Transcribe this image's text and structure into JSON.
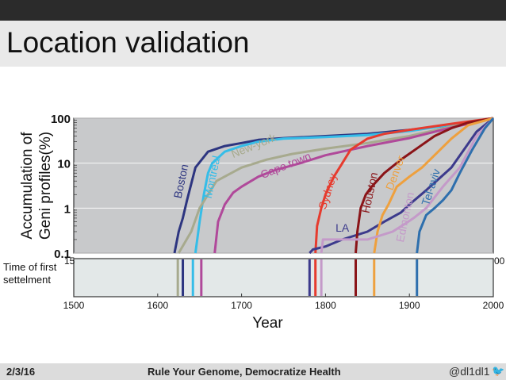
{
  "slide": {
    "title": "Location validation",
    "footer_date": "2/3/16",
    "footer_title": "Rule Your Genome, Democratize Health",
    "footer_handle": "@dl1dl1",
    "footer_icon": "twitter-bird-icon"
  },
  "chart_data": {
    "type": "line",
    "ylabel_line1": "Accumulation of",
    "ylabel_line2": "Geni profiles(%)",
    "xlabel": "Year",
    "yscale": "log",
    "ylim": [
      0.1,
      100
    ],
    "xlim": [
      1500,
      2000
    ],
    "yticks": [
      "0.1",
      "1",
      "10",
      "100"
    ],
    "xticks": [
      "1500",
      "1600",
      "1700",
      "1800",
      "1900",
      "2000"
    ],
    "upper_axis_partial_labels": [
      "15",
      "00"
    ],
    "lower_panel_label_line1": "Time of first",
    "lower_panel_label_line2": "settelment",
    "series": [
      {
        "name": "Boston",
        "label": "Boston",
        "color": "#2d3580",
        "x": [
          1620,
          1625,
          1630,
          1635,
          1645,
          1660,
          1680,
          1700,
          1720,
          1750,
          1800,
          1850,
          1900,
          1950,
          2000
        ],
        "y": [
          0.1,
          0.3,
          0.6,
          1.5,
          8,
          18,
          24,
          28,
          33,
          36,
          40,
          45,
          55,
          70,
          100
        ]
      },
      {
        "name": "Montreal",
        "label": "Montreal",
        "color": "#35bde8",
        "x": [
          1645,
          1650,
          1655,
          1660,
          1665,
          1680,
          1700,
          1720,
          1750,
          1800,
          1850,
          1900,
          1950,
          2000
        ],
        "y": [
          0.1,
          0.5,
          2,
          6,
          10,
          18,
          24,
          30,
          35,
          38,
          42,
          52,
          72,
          100
        ]
      },
      {
        "name": "New-york",
        "label": "New-york",
        "color": "#a7aa8e",
        "x": [
          1625,
          1640,
          1650,
          1670,
          1700,
          1730,
          1760,
          1800,
          1850,
          1900,
          1950,
          2000
        ],
        "y": [
          0.1,
          0.3,
          1,
          4,
          8,
          12,
          16,
          21,
          28,
          40,
          65,
          100
        ]
      },
      {
        "name": "Cape town",
        "label": "Cape town",
        "color": "#b0499a",
        "x": [
          1668,
          1672,
          1680,
          1690,
          1700,
          1720,
          1740,
          1770,
          1800,
          1850,
          1900,
          1950,
          2000
        ],
        "y": [
          0.1,
          0.5,
          1.2,
          2.2,
          3,
          5,
          7,
          10,
          15,
          24,
          36,
          62,
          100
        ]
      },
      {
        "name": "Sydney",
        "label": "Sydney",
        "color": "#e63b2e",
        "x": [
          1788,
          1790,
          1795,
          1800,
          1810,
          1820,
          1830,
          1850,
          1870,
          1900,
          1950,
          2000
        ],
        "y": [
          0.1,
          0.4,
          1,
          2,
          5,
          10,
          20,
          35,
          45,
          55,
          75,
          100
        ]
      },
      {
        "name": "LA",
        "label": "LA",
        "color": "#3c3a8c",
        "x": [
          1781,
          1785,
          1800,
          1820,
          1850,
          1870,
          1890,
          1900,
          1920,
          1950,
          1980,
          2000
        ],
        "y": [
          0.1,
          0.12,
          0.14,
          0.2,
          0.3,
          0.5,
          0.8,
          1.2,
          2.5,
          8,
          50,
          100
        ]
      },
      {
        "name": "Houston",
        "label": "Houston",
        "color": "#8a1418",
        "x": [
          1836,
          1838,
          1842,
          1848,
          1855,
          1870,
          1890,
          1910,
          1930,
          1950,
          1970,
          2000
        ],
        "y": [
          0.1,
          0.3,
          1,
          2,
          3,
          6,
          12,
          22,
          40,
          60,
          80,
          100
        ]
      },
      {
        "name": "Denver",
        "label": "Denver",
        "color": "#eea03e",
        "x": [
          1858,
          1862,
          1868,
          1875,
          1885,
          1900,
          1915,
          1930,
          1950,
          1970,
          2000
        ],
        "y": [
          0.1,
          0.3,
          0.7,
          1.2,
          3,
          5,
          8,
          15,
          35,
          70,
          100
        ]
      },
      {
        "name": "Edmonton",
        "label": "Edmonton",
        "color": "#c49ac9",
        "x": [
          1795,
          1797,
          1820,
          1850,
          1880,
          1895,
          1905,
          1920,
          1940,
          1960,
          1980,
          2000
        ],
        "y": [
          0.1,
          0.2,
          0.2,
          0.2,
          0.3,
          0.45,
          0.6,
          1,
          3,
          8,
          40,
          100
        ]
      },
      {
        "name": "Tel-aviv",
        "label": "Tel-aviv",
        "color": "#2e6fad",
        "x": [
          1909,
          1912,
          1920,
          1930,
          1940,
          1950,
          1960,
          1975,
          1990,
          2000
        ],
        "y": [
          0.1,
          0.3,
          0.7,
          1,
          1.5,
          2.5,
          6,
          20,
          60,
          100
        ]
      }
    ],
    "settlements": [
      {
        "name": "New-york",
        "year": 1624,
        "color": "#a7aa8e"
      },
      {
        "name": "Boston",
        "year": 1630,
        "color": "#2d3580"
      },
      {
        "name": "Montreal",
        "year": 1642,
        "color": "#35bde8"
      },
      {
        "name": "Cape town",
        "year": 1652,
        "color": "#b0499a"
      },
      {
        "name": "LA",
        "year": 1781,
        "color": "#3c3a8c"
      },
      {
        "name": "Sydney",
        "year": 1788,
        "color": "#e63b2e"
      },
      {
        "name": "Edmonton",
        "year": 1795,
        "color": "#c49ac9"
      },
      {
        "name": "Houston",
        "year": 1836,
        "color": "#8a1418"
      },
      {
        "name": "Denver",
        "year": 1858,
        "color": "#eea03e"
      },
      {
        "name": "Tel-aviv",
        "year": 1909,
        "color": "#2e6fad"
      }
    ]
  }
}
